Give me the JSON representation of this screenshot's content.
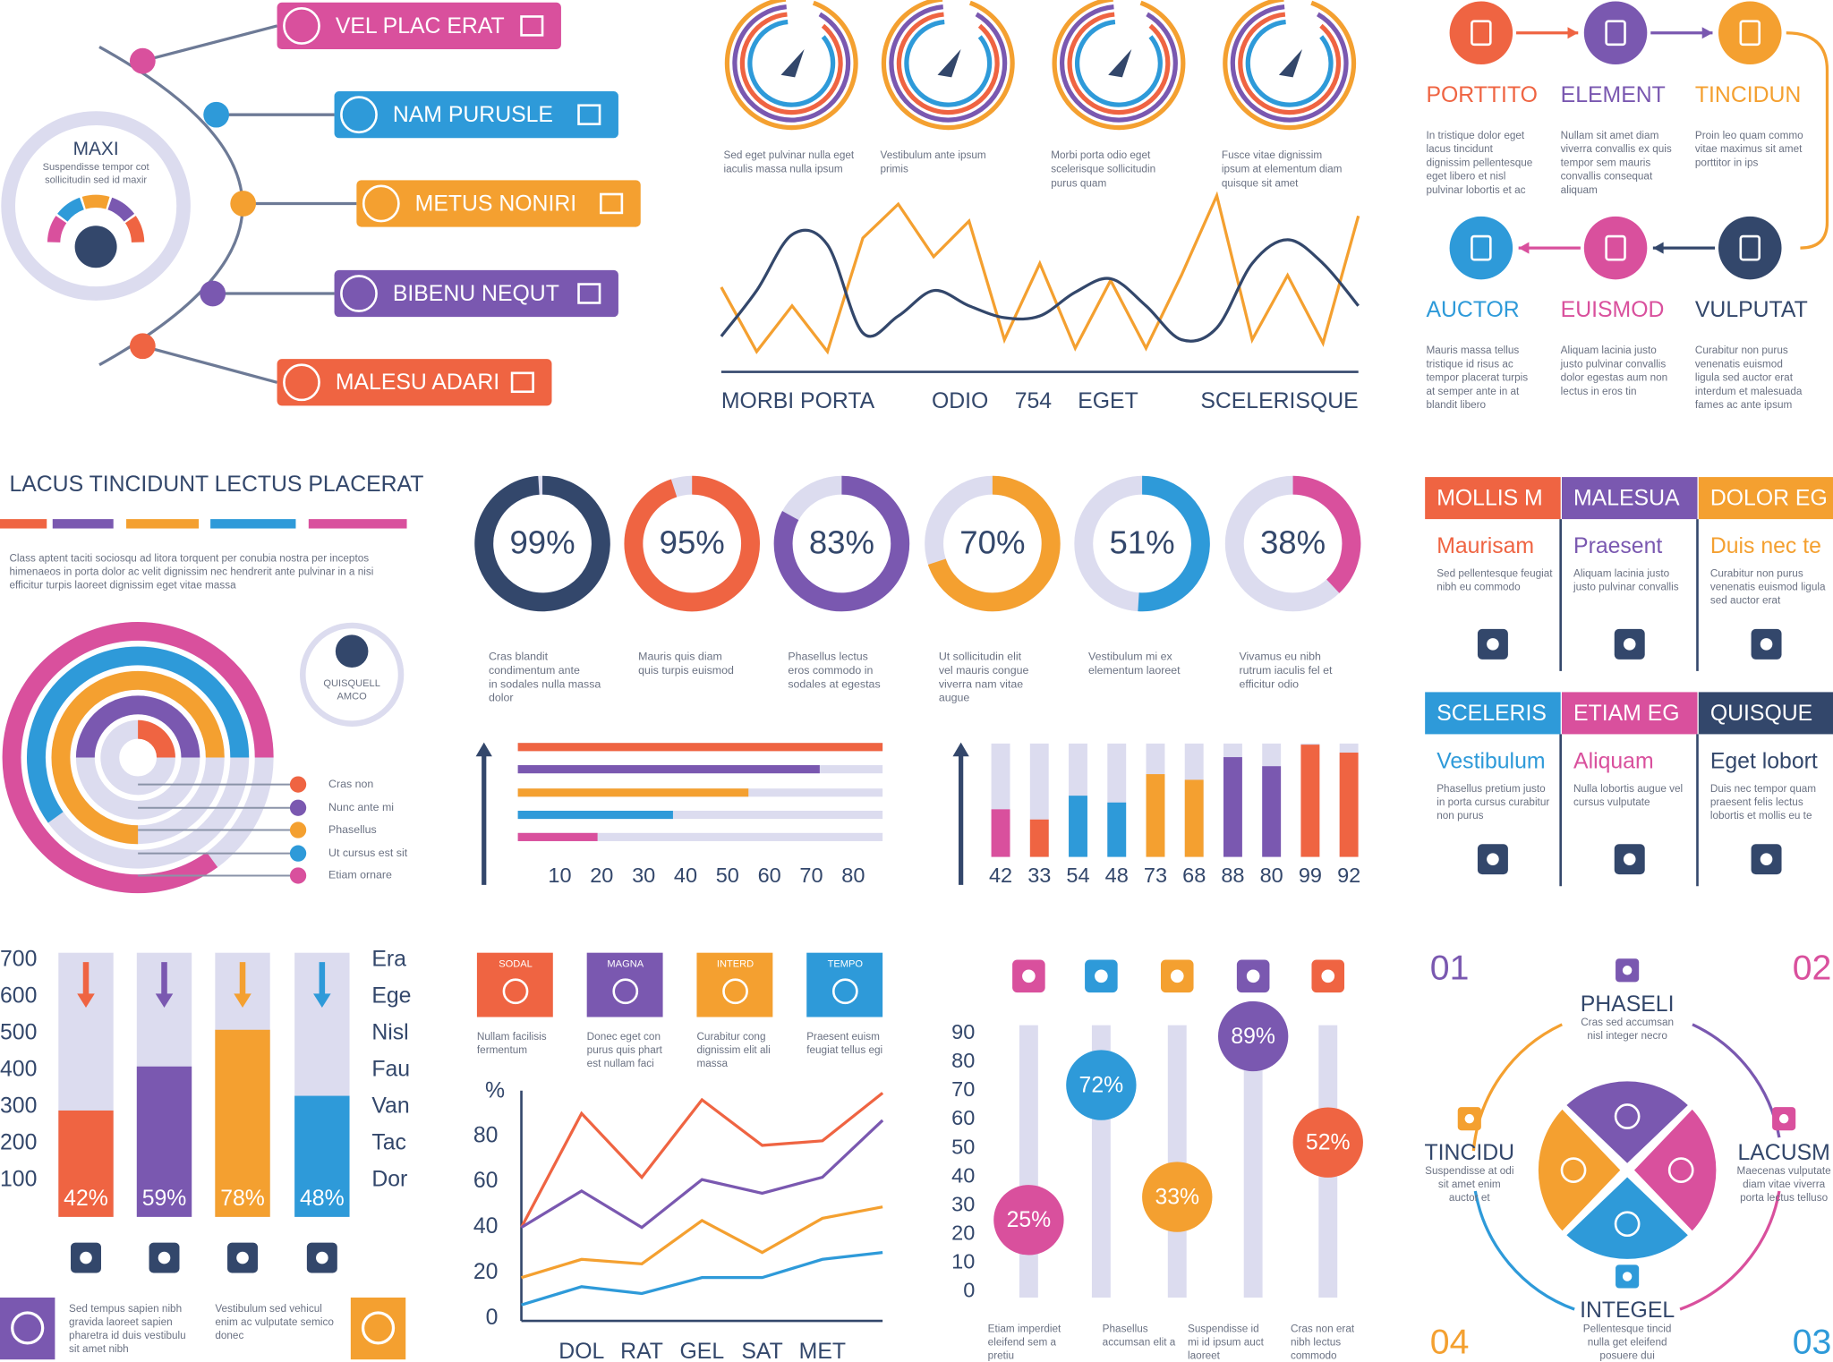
{
  "tree": {
    "type": "tree",
    "center_title": "MAXI",
    "center_text": [
      "Suspendisse tempor cot",
      "sollicitudin sed id maxir"
    ],
    "items": [
      {
        "label": "VEL PLAC ERAT",
        "color": "#d9509d"
      },
      {
        "label": "NAM PURUSLE",
        "color": "#2e9ad9"
      },
      {
        "label": "METUS NONIRI",
        "color": "#f4a030"
      },
      {
        "label": "BIBENU NEQUT",
        "color": "#7a58b0"
      },
      {
        "label": "MALESU ADARI",
        "color": "#ef6442"
      }
    ]
  },
  "radial_icons": {
    "type": "radial_icons",
    "colors": [
      "#f4a030",
      "#7a58b0",
      "#ef6442",
      "#2e9ad9"
    ],
    "captions": [
      [
        "Sed eget pulvinar nulla eget",
        "iaculis massa nulla ipsum"
      ],
      [
        "Vestibulum ante ipsum",
        "primis"
      ],
      [
        "Morbi porta odio eget",
        "scelerisque sollicitudin",
        "purus quam"
      ],
      [
        "Fusce vitae dignissim",
        "ipsum at elementum diam",
        "quisque sit amet"
      ]
    ]
  },
  "wave": {
    "type": "wave",
    "labels": [
      "MORBI PORTA",
      "ODIO",
      "754",
      "EGET",
      "SCELERISQUE"
    ],
    "ylim": [
      0,
      100
    ],
    "series": [
      {
        "color": "#f4a030",
        "values": [
          41,
          3,
          30,
          3,
          70,
          90,
          59,
          80,
          10,
          55,
          5,
          45,
          5,
          48,
          95,
          10,
          48,
          8,
          83
        ]
      },
      {
        "color": "#33476b",
        "values": [
          12,
          39,
          72,
          66,
          14,
          24,
          39,
          30,
          23,
          24,
          38,
          46,
          30,
          10,
          17,
          55,
          69,
          55,
          30
        ]
      }
    ]
  },
  "flow": {
    "type": "flow",
    "nodes": [
      {
        "title": "PORTTITO",
        "color": "#ef6442",
        "text": [
          "In tristique dolor eget",
          "lacus tincidunt",
          "dignissim pellentesque",
          "eget libero et nisl",
          "pulvinar lobortis et ac"
        ]
      },
      {
        "title": "ELEMENT",
        "color": "#7a58b0",
        "text": [
          "Nullam sit amet diam",
          "viverra convallis ex quis",
          "tempor sem mauris",
          "convallis consequat",
          "aliquam"
        ]
      },
      {
        "title": "TINCIDUN",
        "color": "#f4a030",
        "text": [
          "Proin leo quam commo",
          "vitae maximus sit amet",
          "porttitor in ips"
        ]
      },
      {
        "title": "AUCTOR",
        "color": "#2e9ad9",
        "text": [
          "Mauris massa tellus",
          "tristique id risus ac",
          "tempor placerat turpis",
          "at semper ante in at",
          "blandit libero"
        ]
      },
      {
        "title": "EUISMOD",
        "color": "#d9509d",
        "text": [
          "Aliquam lacinia justo",
          "justo pulvinar convallis",
          "dolor egestas aum non",
          "lectus in eros tin"
        ]
      },
      {
        "title": "VULPUTAT",
        "color": "#33476b",
        "text": [
          "Curabitur non purus",
          "venenatis euismod",
          "ligula sed auctor erat",
          "interdum et malesuada",
          "fames ac ante ipsum"
        ]
      }
    ]
  },
  "arcs": {
    "type": "arcs",
    "title": "LACUS TINCIDUNT LECTUS PLACERAT",
    "stripes": [
      "#ef6442",
      "#7a58b0",
      "#f4a030",
      "#2e9ad9",
      "#d9509d"
    ],
    "text": [
      "Class aptent taciti sociosqu ad litora torquent per conubia nostra per inceptos",
      "himenaeos in porta dolor ac velit dignissim nec hendrerit ante pulvinar in a nisi",
      "efficitur turpis laoreet dignissim eget vitae massa"
    ],
    "badge": [
      "QUISQUELL",
      "AMCO"
    ],
    "series": [
      {
        "name": "Cras non",
        "color": "#ef6442",
        "value": 25
      },
      {
        "name": "Nunc ante mi",
        "color": "#7a58b0",
        "value": 50
      },
      {
        "name": "Phasellus",
        "color": "#f4a030",
        "value": 75
      },
      {
        "name": "Ut cursus est sit",
        "color": "#2e9ad9",
        "value": 60
      },
      {
        "name": "Etiam ornare",
        "color": "#d9509d",
        "value": 85
      }
    ]
  },
  "donuts": {
    "type": "donuts",
    "values": [
      99,
      95,
      83,
      70,
      51,
      38
    ],
    "value_labels": [
      "99%",
      "95%",
      "83%",
      "70%",
      "51%",
      "38%"
    ],
    "colors": [
      "#33476b",
      "#ef6442",
      "#7a58b0",
      "#f4a030",
      "#2e9ad9",
      "#d9509d"
    ],
    "captions": [
      [
        "Cras blandit",
        "condimentum ante",
        "in sodales nulla massa",
        "dolor"
      ],
      [
        "Mauris quis diam",
        "quis turpis euismod"
      ],
      [
        "Phasellus lectus",
        "eros commodo in",
        "sodales at egestas"
      ],
      [
        "Ut sollicitudin elit",
        "vel mauris congue",
        "viverra nam vitae",
        "augue"
      ],
      [
        "Vestibulum mi ex",
        "elementum  laoreet"
      ],
      [
        "Vivamus eu nibh",
        "rutrum iaculis fel et",
        "efficitur odio"
      ]
    ]
  },
  "hbar": {
    "type": "hbar",
    "values": [
      87,
      72,
      55,
      37,
      19
    ],
    "colors": [
      "#ef6442",
      "#7a58b0",
      "#f4a030",
      "#2e9ad9",
      "#d9509d"
    ],
    "xlim": [
      0,
      87
    ],
    "xticks": [
      10,
      20,
      30,
      40,
      50,
      60,
      70,
      80
    ]
  },
  "vbar": {
    "type": "vbar",
    "values": [
      42,
      33,
      54,
      48,
      73,
      68,
      88,
      80,
      99,
      92
    ],
    "ylim": [
      0,
      100
    ],
    "colors": [
      "#d9509d",
      "#ef6442",
      "#2e9ad9",
      "#2e9ad9",
      "#f4a030",
      "#f4a030",
      "#7a58b0",
      "#7a58b0",
      "#ef6442",
      "#ef6442"
    ]
  },
  "cards": {
    "type": "cards",
    "items": [
      {
        "header": "MOLLIS M",
        "color": "#ef6442",
        "title": "Maurisam",
        "text": [
          "Sed pellentesque feugiat",
          "nibh eu commodo"
        ]
      },
      {
        "header": "MALESUA",
        "color": "#7a58b0",
        "title": "Praesent",
        "text": [
          "Aliquam lacinia justo",
          "justo pulvinar convallis"
        ]
      },
      {
        "header": "DOLOR EG",
        "color": "#f4a030",
        "title": "Duis nec te",
        "text": [
          "Curabitur non purus",
          "venenatis euismod ligula",
          "sed auctor erat"
        ]
      },
      {
        "header": "SCELERIS",
        "color": "#2e9ad9",
        "title": "Vestibulum",
        "text": [
          "Phasellus pretium justo",
          "in porta cursus curabitur",
          "non purus"
        ]
      },
      {
        "header": "ETIAM EG",
        "color": "#d9509d",
        "title": "Aliquam",
        "text": [
          "Nulla lobortis augue vel",
          "cursus vulputate"
        ]
      },
      {
        "header": "QUISQUE",
        "color": "#33476b",
        "title": "Eget lobort",
        "text": [
          "Duis nec tempor quam",
          "praesent felis lectus",
          "lobortis et mollis eu te"
        ]
      }
    ]
  },
  "stacked": {
    "type": "stacked_bar",
    "ylim": [
      0,
      720
    ],
    "yticks": [
      700,
      600,
      500,
      400,
      300,
      200,
      100
    ],
    "values": [
      290,
      410,
      510,
      330
    ],
    "value_labels": [
      "42%",
      "59%",
      "78%",
      "48%"
    ],
    "colors": [
      "#ef6442",
      "#7a58b0",
      "#f4a030",
      "#2e9ad9"
    ],
    "right_labels": [
      "Era",
      "Ege",
      "Nisl",
      "Fau",
      "Van",
      "Tac",
      "Dor"
    ],
    "notes": [
      [
        "Sed tempus sapien nibh",
        "gravida laoreet sapien",
        "pharetra id duis vestibulu",
        "sit amet nibh"
      ],
      [
        "Vestibulum sed vehicul",
        "enim ac vulputate semico",
        "donec"
      ]
    ]
  },
  "tiles": {
    "type": "tiles",
    "items": [
      {
        "label": "SODAL",
        "color": "#ef6442",
        "text": [
          "Nullam facilisis",
          "fermentum"
        ]
      },
      {
        "label": "MAGNA",
        "color": "#7a58b0",
        "text": [
          "Donec eget con",
          "purus quis phart",
          "est nullam faci"
        ]
      },
      {
        "label": "INTERD",
        "color": "#f4a030",
        "text": [
          "Curabitur cong",
          "dignissim elit ali",
          "massa"
        ]
      },
      {
        "label": "TEMPO",
        "color": "#2e9ad9",
        "text": [
          "Praesent euism",
          "feugiat tellus egi"
        ]
      }
    ]
  },
  "line": {
    "type": "line",
    "ylabel": "%",
    "ylim": [
      0,
      100
    ],
    "yticks": [
      80,
      60,
      40,
      20,
      0
    ],
    "categories": [
      null,
      "DOL",
      "RAT",
      "GEL",
      "SAT",
      "MET",
      null
    ],
    "series": [
      {
        "color": "#ef6442",
        "values": [
          40,
          90,
          62,
          96,
          76,
          78,
          99
        ]
      },
      {
        "color": "#7a58b0",
        "values": [
          40,
          56,
          40,
          61,
          55,
          62,
          87
        ]
      },
      {
        "color": "#f4a030",
        "values": [
          18,
          26,
          24,
          43,
          29,
          44,
          49
        ]
      },
      {
        "color": "#2e9ad9",
        "values": [
          6,
          14,
          11,
          18,
          18,
          26,
          29
        ]
      }
    ]
  },
  "lollipop": {
    "type": "lollipop",
    "ylim": [
      0,
      90
    ],
    "yticks": [
      90,
      80,
      70,
      60,
      50,
      40,
      30,
      20,
      10,
      0
    ],
    "values": [
      25,
      72,
      33,
      89,
      52
    ],
    "value_labels": [
      "25%",
      "72%",
      "33%",
      "89%",
      "52%"
    ],
    "colors": [
      "#d9509d",
      "#2e9ad9",
      "#f4a030",
      "#7a58b0",
      "#ef6442"
    ],
    "captions": [
      [
        "Etiam imperdiet",
        "eleifend sem a",
        "pretiu"
      ],
      [
        "Phasellus",
        "accumsan elit a"
      ],
      [
        "Suspendisse id",
        "mi id ipsum auct",
        "laoreet"
      ],
      [
        "Cras non erat",
        "nibh lectus",
        "commodo"
      ]
    ]
  },
  "cycle": {
    "type": "cycle",
    "numbers": [
      "01",
      "02",
      "03",
      "04"
    ],
    "colors": [
      "#7a58b0",
      "#d9509d",
      "#2e9ad9",
      "#f4a030"
    ],
    "items": [
      {
        "title": "PHASELI",
        "text": [
          "Cras sed accumsan",
          "nisl integer necro"
        ]
      },
      {
        "title": "TINCIDU",
        "text": [
          "Suspendisse at odi",
          "sit amet enim",
          "auctor et"
        ]
      },
      {
        "title": "LACUSM",
        "text": [
          "Maecenas vulputate",
          "diam vitae viverra",
          "porta lectus telluso"
        ]
      },
      {
        "title": "INTEGEL",
        "text": [
          "Pellentesque tincid",
          "nulla get eleifend",
          "posuere dui"
        ]
      }
    ]
  }
}
